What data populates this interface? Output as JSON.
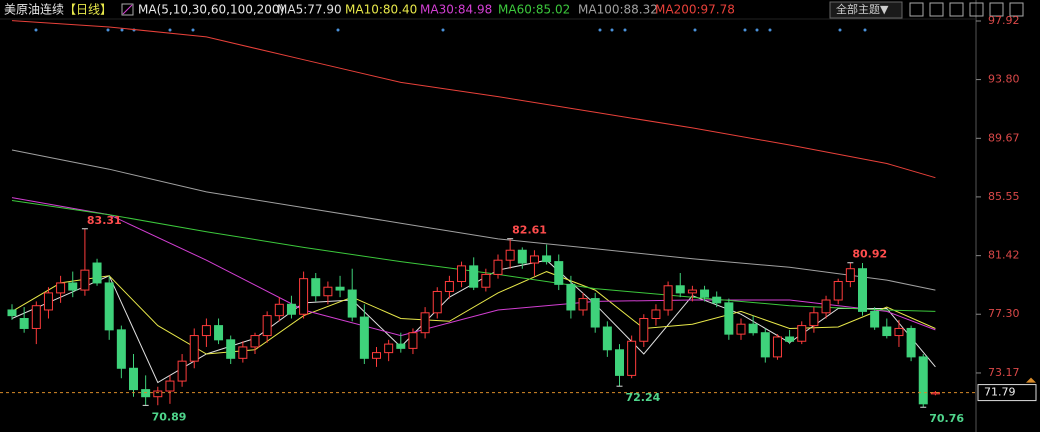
{
  "toolbar": {
    "theme_button": "全部主题▼"
  },
  "chart_data": {
    "type": "candlestick",
    "title": "美原油连续",
    "period": "【日线】",
    "ma_label": "MA(5,10,30,60,100,200)",
    "up_color": "#ff3c3c",
    "down_color": "#3fd27b",
    "ylim": [
      69.3,
      98.13
    ],
    "yticks": [
      97.92,
      {
        "value": 93.8,
        "label": "93.80"
      },
      89.67,
      85.55,
      81.42,
      {
        "value": 77.3,
        "label": "77.30"
      },
      73.17
    ],
    "candles": [
      [
        77.6,
        78.0,
        76.9,
        77.2
      ],
      [
        77.0,
        77.8,
        76.0,
        76.3
      ],
      [
        76.3,
        78.2,
        75.2,
        77.9
      ],
      [
        77.6,
        79.2,
        77.0,
        78.8
      ],
      [
        78.8,
        80.0,
        78.1,
        79.5
      ],
      [
        79.5,
        80.3,
        78.5,
        79.0
      ],
      [
        79.0,
        83.31,
        78.6,
        80.4
      ],
      [
        80.9,
        81.2,
        79.3,
        79.5
      ],
      [
        79.5,
        80.0,
        75.5,
        76.2
      ],
      [
        76.2,
        76.5,
        72.8,
        73.5
      ],
      [
        73.5,
        74.5,
        71.5,
        72.0
      ],
      [
        72.0,
        73.0,
        70.89,
        71.5
      ],
      [
        71.5,
        72.2,
        70.9,
        71.9
      ],
      [
        71.9,
        73.0,
        71.0,
        72.6
      ],
      [
        72.6,
        74.5,
        72.2,
        74.0
      ],
      [
        74.0,
        76.3,
        73.5,
        75.8
      ],
      [
        75.8,
        77.0,
        75.0,
        76.5
      ],
      [
        76.5,
        77.0,
        75.2,
        75.5
      ],
      [
        75.5,
        75.8,
        73.8,
        74.2
      ],
      [
        74.2,
        75.4,
        73.9,
        75.0
      ],
      [
        75.0,
        76.0,
        74.5,
        75.8
      ],
      [
        75.8,
        77.5,
        75.3,
        77.2
      ],
      [
        77.2,
        78.5,
        76.8,
        78.0
      ],
      [
        78.0,
        78.6,
        77.0,
        77.3
      ],
      [
        77.3,
        80.3,
        77.0,
        79.8
      ],
      [
        79.8,
        80.2,
        78.2,
        78.6
      ],
      [
        78.6,
        79.6,
        78.0,
        79.2
      ],
      [
        79.2,
        80.0,
        78.5,
        79.0
      ],
      [
        79.0,
        80.5,
        76.8,
        77.1
      ],
      [
        77.1,
        78.0,
        73.8,
        74.2
      ],
      [
        74.2,
        75.0,
        73.6,
        74.6
      ],
      [
        74.6,
        75.5,
        74.0,
        75.2
      ],
      [
        75.2,
        76.0,
        74.6,
        74.9
      ],
      [
        74.9,
        76.3,
        74.5,
        76.0
      ],
      [
        76.0,
        77.8,
        75.6,
        77.4
      ],
      [
        77.4,
        79.2,
        77.0,
        78.9
      ],
      [
        78.9,
        80.0,
        78.4,
        79.6
      ],
      [
        79.6,
        81.0,
        79.2,
        80.7
      ],
      [
        80.7,
        81.3,
        79.0,
        79.2
      ],
      [
        79.2,
        80.5,
        78.9,
        80.1
      ],
      [
        80.1,
        81.5,
        79.8,
        81.1
      ],
      [
        81.1,
        82.61,
        80.5,
        81.8
      ],
      [
        81.8,
        82.0,
        80.5,
        80.9
      ],
      [
        80.9,
        81.8,
        80.0,
        81.4
      ],
      [
        81.4,
        82.2,
        80.8,
        81.0
      ],
      [
        81.0,
        81.5,
        79.0,
        79.4
      ],
      [
        79.4,
        80.0,
        77.0,
        77.6
      ],
      [
        77.6,
        78.8,
        77.2,
        78.4
      ],
      [
        78.4,
        78.8,
        76.0,
        76.4
      ],
      [
        76.4,
        76.8,
        74.3,
        74.8
      ],
      [
        74.8,
        75.2,
        72.24,
        73.0
      ],
      [
        73.0,
        75.8,
        72.8,
        75.4
      ],
      [
        75.4,
        77.3,
        75.0,
        77.0
      ],
      [
        77.0,
        78.0,
        76.5,
        77.6
      ],
      [
        77.6,
        79.6,
        77.2,
        79.3
      ],
      [
        79.3,
        80.2,
        78.5,
        78.8
      ],
      [
        78.8,
        79.3,
        78.2,
        79.0
      ],
      [
        79.0,
        79.3,
        78.2,
        78.5
      ],
      [
        78.5,
        78.9,
        77.8,
        78.1
      ],
      [
        78.1,
        78.4,
        75.5,
        75.9
      ],
      [
        75.9,
        77.0,
        75.5,
        76.6
      ],
      [
        76.6,
        77.2,
        75.8,
        76.0
      ],
      [
        76.0,
        76.3,
        73.9,
        74.3
      ],
      [
        74.3,
        75.9,
        74.1,
        75.7
      ],
      [
        75.7,
        76.2,
        75.2,
        75.4
      ],
      [
        75.4,
        76.8,
        75.2,
        76.5
      ],
      [
        76.5,
        77.8,
        76.0,
        77.4
      ],
      [
        77.4,
        78.6,
        77.0,
        78.3
      ],
      [
        78.3,
        79.8,
        78.0,
        79.6
      ],
      [
        79.6,
        80.92,
        79.2,
        80.5
      ],
      [
        80.5,
        80.9,
        77.2,
        77.5
      ],
      [
        77.5,
        77.8,
        76.2,
        76.4
      ],
      [
        76.4,
        77.0,
        75.6,
        75.8
      ],
      [
        75.8,
        76.9,
        75.0,
        76.3
      ],
      [
        76.3,
        76.5,
        74.0,
        74.3
      ],
      [
        74.3,
        74.5,
        70.76,
        71.0
      ],
      [
        71.7,
        71.9,
        71.6,
        71.79
      ]
    ],
    "series": [
      {
        "name": "MA5:77.90",
        "color": "#e0e0e0",
        "x": [
          0,
          4,
          8,
          12,
          16,
          20,
          24,
          28,
          32,
          36,
          40,
          44,
          48,
          52,
          56,
          60,
          64,
          68,
          72,
          76
        ],
        "values": [
          77.0,
          78.5,
          80.0,
          72.5,
          74.5,
          75.6,
          78.1,
          78.3,
          75.0,
          78.5,
          80.4,
          81.1,
          78.0,
          74.5,
          78.6,
          77.3,
          75.3,
          77.7,
          77.7,
          73.6
        ]
      },
      {
        "name": "MA10:80.40",
        "color": "#e8e84a",
        "x": [
          0,
          4,
          8,
          12,
          16,
          20,
          24,
          28,
          32,
          36,
          40,
          44,
          48,
          52,
          56,
          60,
          64,
          68,
          72,
          76
        ],
        "values": [
          77.5,
          79.5,
          80.0,
          76.5,
          74.5,
          74.8,
          77.2,
          78.5,
          77.0,
          76.8,
          78.8,
          80.3,
          79.0,
          76.3,
          76.6,
          77.5,
          76.3,
          76.4,
          77.8,
          76.3
        ]
      },
      {
        "name": "MA30:84.98",
        "color": "#d33fd3",
        "x": [
          0,
          8,
          16,
          24,
          32,
          40,
          48,
          56,
          64,
          72,
          76
        ],
        "values": [
          85.5,
          84.3,
          81.1,
          77.6,
          75.8,
          77.6,
          78.2,
          78.3,
          78.3,
          77.5,
          76.2
        ]
      },
      {
        "name": "MA60:85.02",
        "color": "#3cc83c",
        "x": [
          0,
          8,
          16,
          24,
          32,
          40,
          48,
          56,
          64,
          72,
          76
        ],
        "values": [
          85.3,
          84.3,
          83.1,
          82.0,
          81.0,
          80.1,
          79.1,
          78.5,
          77.9,
          77.6,
          77.5
        ]
      },
      {
        "name": "MA100:88.32",
        "color": "#a0a0a0",
        "x": [
          0,
          8,
          16,
          24,
          32,
          40,
          48,
          56,
          64,
          72,
          76
        ],
        "values": [
          88.85,
          87.5,
          85.9,
          84.8,
          83.7,
          82.6,
          81.9,
          81.2,
          80.6,
          79.7,
          79.0
        ]
      },
      {
        "name": "MA200:97.78",
        "color": "#e8413a",
        "x": [
          0,
          8,
          16,
          24,
          32,
          40,
          48,
          56,
          64,
          72,
          76
        ],
        "values": [
          97.95,
          97.5,
          96.8,
          95.2,
          93.6,
          92.6,
          91.5,
          90.4,
          89.2,
          87.9,
          86.9
        ]
      }
    ]
  }
}
